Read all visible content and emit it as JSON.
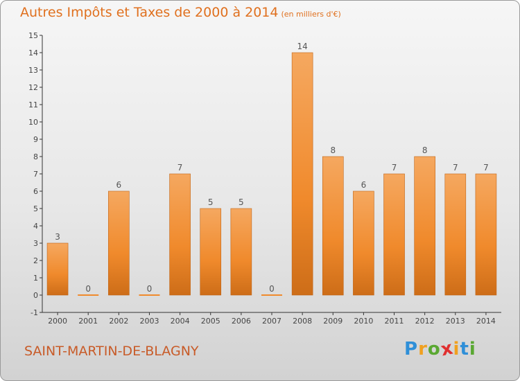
{
  "title": "Autres Impôts et Taxes de 2000 à 2014",
  "title_unit": "(en milliers d'€)",
  "commune": "SAINT-MARTIN-DE-BLAGNY",
  "brand": {
    "letters": [
      "P",
      "r",
      "o",
      "x",
      "i",
      "t",
      "i"
    ],
    "colors": [
      "#2f8fd8",
      "#f0a020",
      "#5aa832",
      "#e03030",
      "#f0a020",
      "#2f8fd8",
      "#5aa832"
    ]
  },
  "colors": {
    "bar": "#f08a2c",
    "bar_light": "#f5a860",
    "bar_dark": "#cd6d18",
    "title": "#e0701e",
    "label": "#555555"
  },
  "chart_data": {
    "type": "bar",
    "categories": [
      "2000",
      "2001",
      "2002",
      "2003",
      "2004",
      "2005",
      "2006",
      "2007",
      "2008",
      "2009",
      "2010",
      "2011",
      "2012",
      "2013",
      "2014"
    ],
    "values": [
      3,
      0,
      6,
      0,
      7,
      5,
      5,
      0,
      14,
      8,
      6,
      7,
      8,
      7,
      7
    ],
    "data_labels": [
      "3",
      "0",
      "6",
      "0",
      "7",
      "5",
      "5",
      "0",
      "14",
      "8",
      "6",
      "7",
      "8",
      "7",
      "7"
    ],
    "yticks": [
      "-1",
      "0",
      "1",
      "2",
      "3",
      "4",
      "5",
      "6",
      "7",
      "8",
      "9",
      "10",
      "11",
      "12",
      "13",
      "14",
      "15"
    ],
    "ylim": [
      -1,
      15
    ],
    "grid": false
  }
}
